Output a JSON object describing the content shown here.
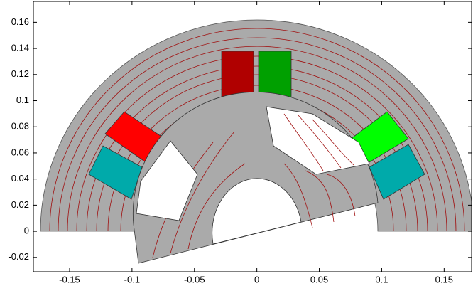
{
  "chart_data": {
    "type": "field-plot",
    "xlim": [
      -0.179,
      0.172
    ],
    "ylim": [
      -0.031,
      0.176
    ],
    "xticks": [
      -0.15,
      -0.1,
      -0.05,
      0,
      0.05,
      0.1,
      0.15
    ],
    "yticks": [
      -0.02,
      0,
      0.02,
      0.04,
      0.06,
      0.08,
      0.1,
      0.12,
      0.14,
      0.16
    ]
  }
}
